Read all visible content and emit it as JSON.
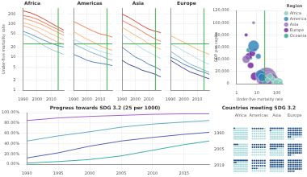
{
  "chart_data": [
    {
      "type": "line",
      "title": "Africa",
      "y_label": "Under-five mortality rate",
      "log": "y",
      "grid": true,
      "x": [
        1990,
        1995,
        2000,
        2005,
        2010,
        2015,
        2019
      ],
      "xlim": [
        1990,
        2019
      ],
      "xticks": [
        1990,
        2000,
        2010
      ],
      "ylim": [
        1,
        300
      ],
      "yticks": [
        1,
        2,
        5,
        10,
        20,
        50,
        100,
        200
      ],
      "target": 25,
      "ref_x": 2015,
      "series": [
        {
          "color": "#d7301f",
          "values": [
            250,
            220,
            180,
            140,
            105,
            80,
            65
          ]
        },
        {
          "color": "#ef6548",
          "values": [
            180,
            165,
            140,
            110,
            85,
            68,
            55
          ]
        },
        {
          "color": "#fc8d59",
          "values": [
            150,
            130,
            110,
            90,
            70,
            55,
            45
          ]
        },
        {
          "color": "#fdbb84",
          "values": [
            110,
            95,
            80,
            65,
            50,
            40,
            33
          ]
        },
        {
          "color": "#f4a582",
          "values": [
            90,
            75,
            60,
            45,
            35,
            28,
            24
          ]
        },
        {
          "color": "#4393c3",
          "values": [
            60,
            50,
            40,
            32,
            26,
            22,
            20
          ]
        },
        {
          "color": "#92c5de",
          "values": [
            50,
            40,
            30,
            22,
            17,
            14,
            12
          ]
        }
      ]
    },
    {
      "type": "line",
      "title": "Americas",
      "log": "y",
      "grid": true,
      "tick_labels": "x",
      "x": [
        1990,
        1995,
        2000,
        2005,
        2010,
        2015,
        2019
      ],
      "xlim": [
        1990,
        2019
      ],
      "xticks": [
        1990,
        2000,
        2010
      ],
      "ylim": [
        1,
        300
      ],
      "yticks": [
        1,
        2,
        5,
        10,
        20,
        50,
        100,
        200
      ],
      "target": 25,
      "ref_x": 2015,
      "series": [
        {
          "color": "#f46d43",
          "values": [
            120,
            95,
            75,
            60,
            50,
            45,
            40
          ]
        },
        {
          "color": "#fdae61",
          "values": [
            60,
            45,
            35,
            28,
            22,
            18,
            16
          ]
        },
        {
          "color": "#abd9e9",
          "values": [
            35,
            28,
            22,
            18,
            15,
            13,
            12
          ]
        },
        {
          "color": "#74add1",
          "values": [
            25,
            20,
            16,
            13,
            11,
            9,
            8
          ]
        },
        {
          "color": "#4575b4",
          "values": [
            12,
            10,
            8,
            7,
            6.5,
            6,
            5.5
          ]
        }
      ]
    },
    {
      "type": "line",
      "title": "Asia",
      "log": "y",
      "grid": true,
      "tick_labels": "x",
      "x": [
        1990,
        1995,
        2000,
        2005,
        2010,
        2015,
        2019
      ],
      "xlim": [
        1990,
        2019
      ],
      "xticks": [
        1990,
        2000,
        2010
      ],
      "ylim": [
        1,
        300
      ],
      "yticks": [
        1,
        2,
        5,
        10,
        20,
        50,
        100,
        200
      ],
      "target": 25,
      "ref_x": 2015,
      "series": [
        {
          "color": "#d73027",
          "values": [
            200,
            160,
            120,
            90,
            70,
            60,
            55
          ]
        },
        {
          "color": "#f46d43",
          "values": [
            130,
            100,
            80,
            60,
            45,
            35,
            30
          ]
        },
        {
          "color": "#fdae61",
          "values": [
            80,
            60,
            45,
            35,
            25,
            20,
            17
          ]
        },
        {
          "color": "#abd9e9",
          "values": [
            50,
            35,
            25,
            18,
            14,
            11,
            9
          ]
        },
        {
          "color": "#4575b4",
          "values": [
            20,
            14,
            10,
            8,
            6,
            5,
            4
          ]
        },
        {
          "color": "#313695",
          "values": [
            8,
            6,
            5,
            4,
            3.5,
            3,
            2.5
          ]
        }
      ]
    },
    {
      "type": "line",
      "title": "Europe",
      "log": "y",
      "grid": true,
      "tick_labels": "x",
      "x": [
        1990,
        1995,
        2000,
        2005,
        2010,
        2015,
        2019
      ],
      "xlim": [
        1990,
        2019
      ],
      "xticks": [
        1990,
        2000,
        2010
      ],
      "ylim": [
        1,
        300
      ],
      "yticks": [
        1,
        2,
        5,
        10,
        20,
        50,
        100,
        200
      ],
      "target": 25,
      "ref_x": 2015,
      "series": [
        {
          "color": "#fdae61",
          "values": [
            45,
            35,
            28,
            22,
            17,
            14,
            12
          ]
        },
        {
          "color": "#abd9e9",
          "values": [
            25,
            20,
            15,
            12,
            9,
            7,
            6
          ]
        },
        {
          "color": "#74add1",
          "values": [
            15,
            11,
            8,
            6,
            5,
            4,
            3.5
          ]
        },
        {
          "color": "#4575b4",
          "values": [
            10,
            8,
            6,
            5,
            4,
            3.5,
            3
          ]
        },
        {
          "color": "#313695",
          "values": [
            8,
            6,
            4.5,
            3.5,
            3,
            2.5,
            2.2
          ]
        }
      ]
    },
    {
      "type": "bubble",
      "x_label": "Under-five mortality rate",
      "y_label": "GDP per capita",
      "legend": "right",
      "legend_title": "Region",
      "log": "x",
      "grid": true,
      "target": 25,
      "xlim": [
        1,
        200
      ],
      "xticks": [
        1,
        10,
        100
      ],
      "ylim": [
        0,
        120000
      ],
      "yticks": [
        0,
        {
          "value": 20000,
          "label": "20,000"
        },
        {
          "value": 40000,
          "label": "40,000"
        },
        {
          "value": 60000,
          "label": "60,000"
        },
        {
          "value": 80000,
          "label": "80,000"
        },
        {
          "value": 100000,
          "label": "100,000"
        },
        {
          "value": 120000,
          "label": "120,000"
        }
      ],
      "series": [
        {
          "name": "Africa",
          "color": "#7fcdbb",
          "x": [
            120,
            90,
            75,
            60,
            45,
            100,
            150,
            35
          ],
          "y": [
            2000,
            1500,
            4000,
            8000,
            12000,
            1000,
            900,
            6000
          ],
          "sizes": [
            200,
            110,
            50,
            30,
            60,
            90,
            20,
            25
          ]
        },
        {
          "name": "Americas",
          "color": "#2c7fb8",
          "x": [
            7,
            15,
            25,
            30,
            12,
            18
          ],
          "y": [
            62000,
            15000,
            8000,
            4000,
            45000,
            10000
          ],
          "sizes": [
            330,
            210,
            45,
            12,
            38,
            128
          ]
        },
        {
          "name": "Asia",
          "color": "#8c6bb1",
          "x": [
            30,
            8,
            7,
            40,
            60,
            20,
            35,
            3
          ],
          "y": [
            10000,
            55000,
            100000,
            2500,
            1500,
            15000,
            4000,
            40000
          ],
          "sizes": [
            1400,
            6,
            3,
            1380,
            220,
            70,
            270,
            125
          ]
        },
        {
          "name": "Europe",
          "color": "#6a1b9a",
          "x": [
            4,
            3,
            5,
            8,
            6
          ],
          "y": [
            45000,
            80000,
            30000,
            12000,
            50000
          ],
          "sizes": [
            83,
            5,
            60,
            145,
            67
          ]
        },
        {
          "name": "Oceania",
          "color": "#1fa187",
          "x": [
            4,
            20,
            5
          ],
          "y": [
            55000,
            3000,
            42000
          ],
          "sizes": [
            25,
            9,
            5
          ]
        }
      ]
    },
    {
      "type": "line",
      "title": "Progress towards SDG 3.2 (25 per 1000)",
      "grid": true,
      "x": [
        1990,
        1995,
        2000,
        2005,
        2010,
        2015,
        2019
      ],
      "xlim": [
        1990,
        2019
      ],
      "xticks": [
        1990,
        1995,
        2000,
        2005,
        2010,
        2015
      ],
      "ylim": [
        0,
        100
      ],
      "yticks": [
        {
          "value": 0,
          "label": "0.00%"
        },
        {
          "value": 20,
          "label": "20.00%"
        },
        {
          "value": 40,
          "label": "40.00%"
        },
        {
          "value": 60,
          "label": "60.00%"
        },
        {
          "value": 80,
          "label": "80.00%"
        },
        {
          "value": 100,
          "label": "100.00%"
        }
      ],
      "series": [
        {
          "color": "#9b4dca",
          "values": [
            85,
            90,
            93,
            95,
            97,
            98,
            98
          ]
        },
        {
          "color": "#4fa3c7",
          "values": [
            45,
            55,
            63,
            72,
            78,
            82,
            85
          ]
        },
        {
          "color": "#3f51b5",
          "values": [
            12,
            22,
            35,
            45,
            52,
            58,
            62
          ]
        },
        {
          "color": "#26a69a",
          "values": [
            2,
            5,
            9,
            16,
            27,
            38,
            45
          ]
        }
      ]
    },
    {
      "type": "dot_matrix",
      "title": "Countries meeting SDG 3.2",
      "categories": [
        "Africa",
        "Americas",
        "Asia",
        "Europe"
      ],
      "rows": [
        1990,
        2005,
        2019
      ],
      "series": [
        {
          "color": "#1d4e89",
          "values": [
            [
              1,
              6,
              9,
              34
            ],
            [
              3,
              14,
              20,
              42
            ],
            [
              11,
              24,
              32,
              44
            ]
          ]
        },
        {
          "color": "#a8dadc",
          "values": [
            [
              53,
              29,
              39,
              10
            ],
            [
              51,
              21,
              28,
              2
            ],
            [
              43,
              11,
              16,
              0
            ]
          ]
        }
      ]
    }
  ]
}
